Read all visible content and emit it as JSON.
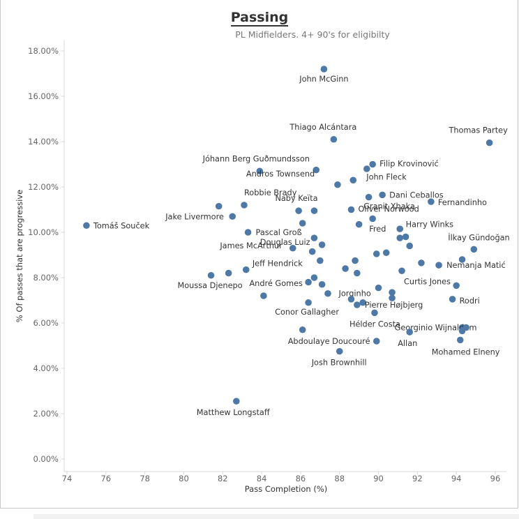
{
  "chart_data": {
    "type": "scatter",
    "title": "Passing",
    "subtitle": "PL Midfielders. 4+ 90's for eligibilty",
    "xlabel": "Pass Completion (%)",
    "ylabel": "% Of passes that are progressive",
    "xlim": [
      73.5,
      97
    ],
    "ylim": [
      0,
      18
    ],
    "x_ticks": [
      "74",
      "76",
      "78",
      "80",
      "82",
      "84",
      "86",
      "88",
      "90",
      "92",
      "94",
      "96"
    ],
    "y_ticks": [
      "0.00%",
      "2.00%",
      "4.00%",
      "6.00%",
      "8.00%",
      "10.00%",
      "12.00%",
      "14.00%",
      "16.00%",
      "18.00%"
    ],
    "grid": false,
    "marker_color": "#4e79a7",
    "points": [
      {
        "x": 87.2,
        "y": 17.2,
        "label": "John McGinn"
      },
      {
        "x": 87.7,
        "y": 14.1,
        "label": "Thiago Alcántara"
      },
      {
        "x": 95.7,
        "y": 13.95,
        "label": "Thomas Partey"
      },
      {
        "x": 83.9,
        "y": 12.7,
        "label": "Jóhann Berg Guðmundsson"
      },
      {
        "x": 86.8,
        "y": 12.75,
        "label": ""
      },
      {
        "x": 89.7,
        "y": 13.0,
        "label": "Filip Krovinović"
      },
      {
        "x": 89.4,
        "y": 12.8,
        "label": ""
      },
      {
        "x": 88.7,
        "y": 12.3,
        "label": "John Fleck"
      },
      {
        "x": 87.9,
        "y": 12.1,
        "label": "Andros Townsend"
      },
      {
        "x": 90.2,
        "y": 11.65,
        "label": "Dani Ceballos"
      },
      {
        "x": 89.5,
        "y": 11.55,
        "label": ""
      },
      {
        "x": 92.7,
        "y": 11.35,
        "label": "Fernandinho"
      },
      {
        "x": 83.1,
        "y": 11.2,
        "label": "Robbie Brady"
      },
      {
        "x": 81.8,
        "y": 11.15,
        "label": ""
      },
      {
        "x": 88.6,
        "y": 11.0,
        "label": "Oliver Norwood"
      },
      {
        "x": 85.9,
        "y": 10.95,
        "label": ""
      },
      {
        "x": 86.7,
        "y": 10.95,
        "label": "Naby Keïta"
      },
      {
        "x": 82.5,
        "y": 10.7,
        "label": "Jake Livermore"
      },
      {
        "x": 89.7,
        "y": 10.6,
        "label": "Granit Xhaka"
      },
      {
        "x": 86.1,
        "y": 10.4,
        "label": ""
      },
      {
        "x": 89.0,
        "y": 10.35,
        "label": ""
      },
      {
        "x": 75.0,
        "y": 10.3,
        "label": "Tomáš Souček"
      },
      {
        "x": 91.1,
        "y": 10.15,
        "label": "Fred"
      },
      {
        "x": 83.3,
        "y": 10.0,
        "label": "Pascal Groß"
      },
      {
        "x": 91.4,
        "y": 9.8,
        "label": "Harry Winks"
      },
      {
        "x": 91.1,
        "y": 9.75,
        "label": ""
      },
      {
        "x": 86.7,
        "y": 9.75,
        "label": ""
      },
      {
        "x": 87.1,
        "y": 9.45,
        "label": "Douglas Luiz"
      },
      {
        "x": 91.6,
        "y": 9.4,
        "label": ""
      },
      {
        "x": 85.6,
        "y": 9.3,
        "label": "James McArthur"
      },
      {
        "x": 94.9,
        "y": 9.25,
        "label": "İlkay Gündoğan"
      },
      {
        "x": 86.6,
        "y": 9.15,
        "label": ""
      },
      {
        "x": 90.4,
        "y": 9.1,
        "label": ""
      },
      {
        "x": 89.9,
        "y": 9.05,
        "label": ""
      },
      {
        "x": 94.3,
        "y": 8.8,
        "label": ""
      },
      {
        "x": 87.0,
        "y": 8.75,
        "label": "Jeff Hendrick"
      },
      {
        "x": 88.8,
        "y": 8.75,
        "label": ""
      },
      {
        "x": 92.2,
        "y": 8.65,
        "label": ""
      },
      {
        "x": 93.1,
        "y": 8.55,
        "label": "Nemanja Matić"
      },
      {
        "x": 88.3,
        "y": 8.4,
        "label": ""
      },
      {
        "x": 83.2,
        "y": 8.35,
        "label": ""
      },
      {
        "x": 91.2,
        "y": 8.3,
        "label": "Curtis Jones"
      },
      {
        "x": 88.9,
        "y": 8.2,
        "label": ""
      },
      {
        "x": 82.3,
        "y": 8.2,
        "label": ""
      },
      {
        "x": 81.4,
        "y": 8.1,
        "label": "Moussa Djenepo"
      },
      {
        "x": 86.7,
        "y": 8.0,
        "label": "André Gomes"
      },
      {
        "x": 86.4,
        "y": 7.8,
        "label": ""
      },
      {
        "x": 87.1,
        "y": 7.7,
        "label": ""
      },
      {
        "x": 94.0,
        "y": 7.65,
        "label": ""
      },
      {
        "x": 90.0,
        "y": 7.55,
        "label": "Jorginho"
      },
      {
        "x": 90.7,
        "y": 7.35,
        "label": ""
      },
      {
        "x": 87.4,
        "y": 7.3,
        "label": ""
      },
      {
        "x": 84.1,
        "y": 7.2,
        "label": ""
      },
      {
        "x": 90.7,
        "y": 7.1,
        "label": ""
      },
      {
        "x": 88.6,
        "y": 7.05,
        "label": ""
      },
      {
        "x": 93.8,
        "y": 7.05,
        "label": "Rodri"
      },
      {
        "x": 86.4,
        "y": 6.9,
        "label": "Conor Gallagher"
      },
      {
        "x": 89.2,
        "y": 6.9,
        "label": ""
      },
      {
        "x": 88.9,
        "y": 6.8,
        "label": "Pierre Højbjerg"
      },
      {
        "x": 89.8,
        "y": 6.45,
        "label": "Hélder Costa"
      },
      {
        "x": 94.3,
        "y": 5.8,
        "label": "Georginio Wijnaldum"
      },
      {
        "x": 94.5,
        "y": 5.8,
        "label": ""
      },
      {
        "x": 86.1,
        "y": 5.7,
        "label": "Abdoulaye Doucouré"
      },
      {
        "x": 94.3,
        "y": 5.65,
        "label": ""
      },
      {
        "x": 91.6,
        "y": 5.6,
        "label": "Allan"
      },
      {
        "x": 94.2,
        "y": 5.25,
        "label": "Mohamed Elneny"
      },
      {
        "x": 89.9,
        "y": 5.2,
        "label": ""
      },
      {
        "x": 88.0,
        "y": 4.75,
        "label": "Josh Brownhill"
      },
      {
        "x": 82.7,
        "y": 2.55,
        "label": "Matthew Longstaff"
      }
    ]
  }
}
